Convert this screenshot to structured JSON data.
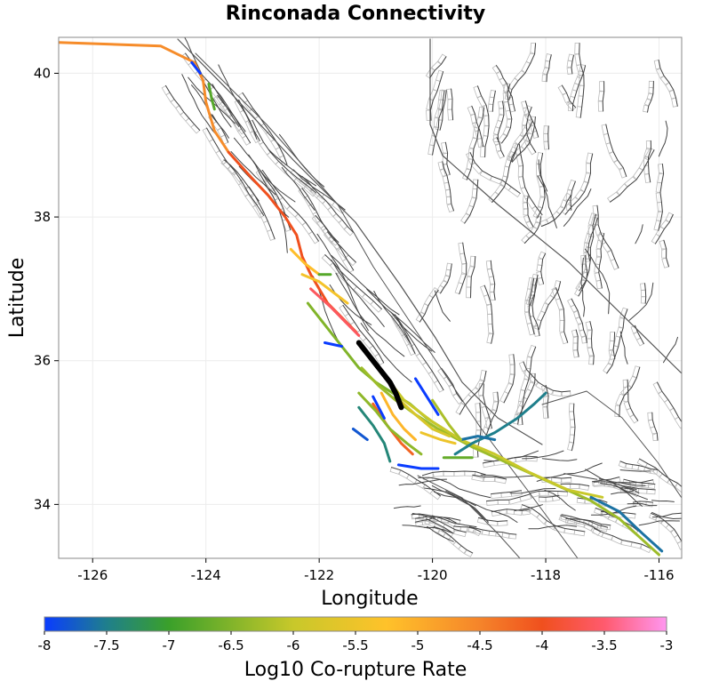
{
  "title": "Rinconada Connectivity",
  "x_axis": {
    "label": "Longitude",
    "range": [
      -126.6,
      -115.6
    ],
    "ticks": [
      -126,
      -124,
      -122,
      -120,
      -118,
      -116
    ],
    "tick_labels": [
      "-126",
      "-124",
      "-122",
      "-120",
      "-118",
      "-116"
    ]
  },
  "y_axis": {
    "label": "Latitude",
    "range": [
      33.25,
      40.5
    ],
    "ticks": [
      34,
      36,
      38,
      40
    ],
    "tick_labels": [
      "34",
      "36",
      "38",
      "40"
    ]
  },
  "colorbar": {
    "label": "Log10 Co-rupture Rate",
    "range": [
      -8,
      -3
    ],
    "ticks": [
      -8,
      -7.5,
      -7,
      -6.5,
      -6,
      -5.5,
      -5,
      -4.5,
      -4,
      -3.5,
      -3
    ],
    "tick_labels": [
      "-8",
      "-7.5",
      "-7",
      "-6.5",
      "-6",
      "-5.5",
      "-5",
      "-4.5",
      "-4",
      "-3.5",
      "-3"
    ],
    "stops": [
      {
        "v": -8,
        "c": "#0a3cff"
      },
      {
        "v": -7.5,
        "c": "#1f7f8c"
      },
      {
        "v": -7,
        "c": "#3aa02a"
      },
      {
        "v": -6,
        "c": "#c8c82a"
      },
      {
        "v": -5.25,
        "c": "#ffc22a"
      },
      {
        "v": -4.5,
        "c": "#f5842a"
      },
      {
        "v": -4,
        "c": "#f0501e"
      },
      {
        "v": -3.5,
        "c": "#ff5a6e"
      },
      {
        "v": -3,
        "c": "#ff96f0"
      }
    ]
  },
  "colors": {
    "background_fault": "#444444",
    "fault_box": "#bbbbbb",
    "target_fault": "#000000"
  },
  "map_data": {
    "target": {
      "name_hidden": true,
      "color": "#000000",
      "points": [
        [
          -121.3,
          36.25
        ],
        [
          -121.1,
          36.05
        ],
        [
          -120.9,
          35.85
        ],
        [
          -120.75,
          35.7
        ],
        [
          -120.65,
          35.55
        ],
        [
          -120.55,
          35.35
        ]
      ]
    },
    "colored_faults": [
      {
        "v": -4.6,
        "points": [
          [
            -126.6,
            40.43
          ],
          [
            -124.8,
            40.38
          ],
          [
            -124.2,
            40.15
          ],
          [
            -124.05,
            39.9
          ],
          [
            -124.0,
            39.6
          ],
          [
            -123.85,
            39.2
          ],
          [
            -123.6,
            38.9
          ]
        ]
      },
      {
        "v": -8,
        "points": [
          [
            -124.25,
            40.15
          ],
          [
            -124.1,
            40.0
          ]
        ]
      },
      {
        "v": -6.8,
        "points": [
          [
            -123.95,
            39.85
          ],
          [
            -123.9,
            39.65
          ],
          [
            -123.85,
            39.5
          ]
        ]
      },
      {
        "v": -4.0,
        "points": [
          [
            -123.6,
            38.9
          ],
          [
            -123.2,
            38.55
          ],
          [
            -122.9,
            38.3
          ],
          [
            -122.6,
            38.0
          ],
          [
            -122.4,
            37.75
          ],
          [
            -122.3,
            37.45
          ],
          [
            -122.15,
            37.2
          ],
          [
            -122.0,
            37.0
          ],
          [
            -121.85,
            36.8
          ],
          [
            -121.6,
            36.6
          ],
          [
            -121.35,
            36.4
          ]
        ]
      },
      {
        "v": -5.2,
        "points": [
          [
            -122.5,
            37.55
          ],
          [
            -122.25,
            37.35
          ],
          [
            -122.0,
            37.2
          ]
        ]
      },
      {
        "v": -6.8,
        "points": [
          [
            -122.0,
            37.2
          ],
          [
            -121.8,
            37.2
          ]
        ]
      },
      {
        "v": -5.4,
        "points": [
          [
            -122.3,
            37.2
          ],
          [
            -122.0,
            37.1
          ],
          [
            -121.75,
            36.95
          ],
          [
            -121.5,
            36.8
          ]
        ]
      },
      {
        "v": -3.6,
        "points": [
          [
            -122.15,
            37.0
          ],
          [
            -121.8,
            36.75
          ],
          [
            -121.55,
            36.55
          ],
          [
            -121.3,
            36.35
          ]
        ]
      },
      {
        "v": -6.5,
        "points": [
          [
            -122.2,
            36.8
          ],
          [
            -121.95,
            36.55
          ],
          [
            -121.6,
            36.2
          ],
          [
            -121.3,
            35.9
          ],
          [
            -121.0,
            35.7
          ],
          [
            -120.7,
            35.55
          ],
          [
            -120.4,
            35.4
          ],
          [
            -120.1,
            35.2
          ],
          [
            -119.8,
            35.05
          ]
        ]
      },
      {
        "v": -8,
        "points": [
          [
            -121.9,
            36.25
          ],
          [
            -121.6,
            36.2
          ]
        ]
      },
      {
        "v": -6.3,
        "points": [
          [
            -121.25,
            35.9
          ],
          [
            -120.95,
            35.65
          ],
          [
            -120.65,
            35.45
          ],
          [
            -120.3,
            35.25
          ],
          [
            -119.9,
            35.05
          ],
          [
            -119.3,
            34.8
          ],
          [
            -118.6,
            34.55
          ],
          [
            -117.9,
            34.3
          ],
          [
            -117.2,
            34.05
          ],
          [
            -116.7,
            33.8
          ],
          [
            -116.35,
            33.55
          ],
          [
            -116.0,
            33.3
          ]
        ]
      },
      {
        "v": -6.0,
        "points": [
          [
            -120.9,
            35.85
          ],
          [
            -120.5,
            35.45
          ],
          [
            -120.0,
            35.15
          ],
          [
            -119.5,
            34.9
          ],
          [
            -118.9,
            34.7
          ],
          [
            -118.3,
            34.45
          ],
          [
            -117.6,
            34.2
          ],
          [
            -117.0,
            34.1
          ]
        ]
      },
      {
        "v": -7.6,
        "points": [
          [
            -117.2,
            34.1
          ],
          [
            -116.7,
            33.9
          ],
          [
            -116.3,
            33.6
          ],
          [
            -115.95,
            33.35
          ]
        ]
      },
      {
        "v": -5.8,
        "points": [
          [
            -120.65,
            35.5
          ],
          [
            -120.3,
            35.25
          ],
          [
            -120.0,
            35.05
          ],
          [
            -119.7,
            34.95
          ]
        ]
      },
      {
        "v": -5.1,
        "points": [
          [
            -120.9,
            35.55
          ],
          [
            -120.7,
            35.25
          ],
          [
            -120.5,
            35.05
          ],
          [
            -120.3,
            34.9
          ]
        ]
      },
      {
        "v": -4.2,
        "points": [
          [
            -121.05,
            35.4
          ],
          [
            -120.8,
            35.1
          ],
          [
            -120.55,
            34.85
          ],
          [
            -120.35,
            34.7
          ]
        ]
      },
      {
        "v": -6.4,
        "points": [
          [
            -121.3,
            35.55
          ],
          [
            -121.0,
            35.3
          ],
          [
            -120.75,
            35.05
          ],
          [
            -120.45,
            34.85
          ],
          [
            -120.2,
            34.7
          ]
        ]
      },
      {
        "v": -7.4,
        "points": [
          [
            -121.3,
            35.35
          ],
          [
            -121.05,
            35.1
          ],
          [
            -120.85,
            34.85
          ],
          [
            -120.75,
            34.6
          ]
        ]
      },
      {
        "v": -8,
        "points": [
          [
            -120.6,
            34.55
          ],
          [
            -120.2,
            34.5
          ],
          [
            -119.9,
            34.5
          ]
        ]
      },
      {
        "v": -8,
        "points": [
          [
            -121.05,
            35.5
          ],
          [
            -120.85,
            35.2
          ]
        ]
      },
      {
        "v": -8,
        "points": [
          [
            -120.3,
            35.75
          ],
          [
            -120.1,
            35.5
          ],
          [
            -119.9,
            35.25
          ]
        ]
      },
      {
        "v": -7.8,
        "points": [
          [
            -121.4,
            35.05
          ],
          [
            -121.15,
            34.9
          ]
        ]
      },
      {
        "v": -7.5,
        "points": [
          [
            -119.6,
            34.7
          ],
          [
            -119.3,
            34.85
          ],
          [
            -118.9,
            35.0
          ],
          [
            -118.5,
            35.2
          ],
          [
            -118.2,
            35.4
          ],
          [
            -118.0,
            35.55
          ]
        ]
      },
      {
        "v": -7.6,
        "points": [
          [
            -119.5,
            34.9
          ],
          [
            -119.2,
            34.95
          ],
          [
            -118.9,
            34.9
          ]
        ]
      },
      {
        "v": -6.7,
        "points": [
          [
            -119.8,
            34.65
          ],
          [
            -119.3,
            34.65
          ]
        ]
      },
      {
        "v": -5.5,
        "points": [
          [
            -120.2,
            35.0
          ],
          [
            -119.85,
            34.9
          ],
          [
            -119.6,
            34.85
          ]
        ]
      },
      {
        "v": -6.2,
        "points": [
          [
            -120.0,
            35.45
          ],
          [
            -119.7,
            35.1
          ],
          [
            -119.5,
            34.9
          ]
        ]
      }
    ]
  }
}
